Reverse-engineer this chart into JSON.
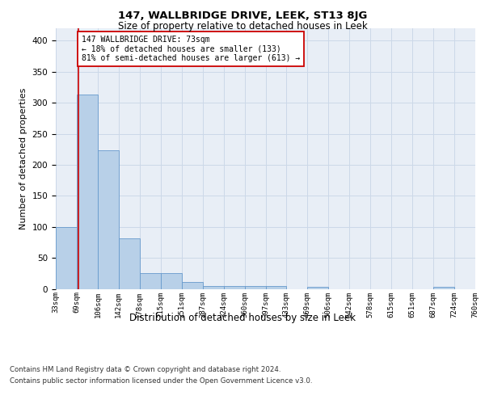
{
  "title1": "147, WALLBRIDGE DRIVE, LEEK, ST13 8JG",
  "title2": "Size of property relative to detached houses in Leek",
  "xlabel": "Distribution of detached houses by size in Leek",
  "ylabel": "Number of detached properties",
  "footnote1": "Contains HM Land Registry data © Crown copyright and database right 2024.",
  "footnote2": "Contains public sector information licensed under the Open Government Licence v3.0.",
  "annotation_line1": "147 WALLBRIDGE DRIVE: 73sqm",
  "annotation_line2": "← 18% of detached houses are smaller (133)",
  "annotation_line3": "81% of semi-detached houses are larger (613) →",
  "bar_color": "#b8d0e8",
  "bar_edge_color": "#6699cc",
  "vline_color": "#cc0000",
  "bin_labels": [
    "33sqm",
    "69sqm",
    "106sqm",
    "142sqm",
    "178sqm",
    "215sqm",
    "251sqm",
    "287sqm",
    "324sqm",
    "360sqm",
    "397sqm",
    "433sqm",
    "469sqm",
    "506sqm",
    "542sqm",
    "578sqm",
    "615sqm",
    "651sqm",
    "687sqm",
    "724sqm",
    "760sqm"
  ],
  "bar_heights": [
    100,
    313,
    223,
    82,
    26,
    26,
    11,
    5,
    4,
    4,
    5,
    0,
    3,
    0,
    0,
    0,
    0,
    0,
    3,
    0
  ],
  "ylim": [
    0,
    420
  ],
  "yticks": [
    0,
    50,
    100,
    150,
    200,
    250,
    300,
    350,
    400
  ],
  "vline_x": 1.09,
  "grid_color": "#ccd8e8",
  "bg_color": "#e8eef6"
}
